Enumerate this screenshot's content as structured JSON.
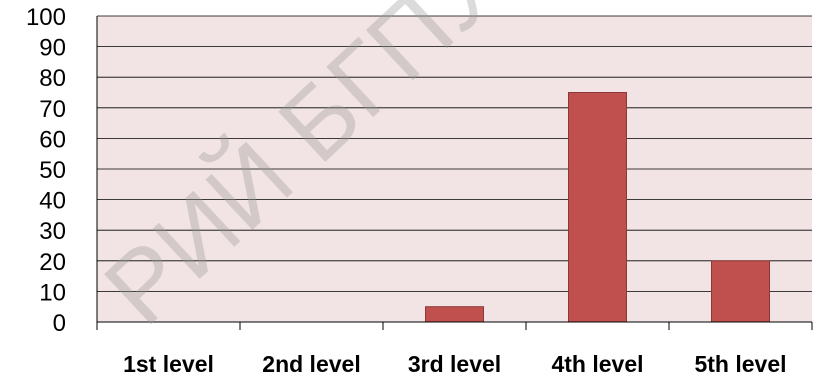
{
  "chart_data": {
    "type": "bar",
    "categories": [
      "1st level",
      "2nd level",
      "3rd level",
      "4th level",
      "5th level"
    ],
    "values": [
      0,
      0,
      5,
      75,
      20
    ],
    "ylim": [
      0,
      100
    ],
    "yticks": [
      0,
      10,
      20,
      30,
      40,
      50,
      60,
      70,
      80,
      90,
      100
    ],
    "grid": true,
    "legend": "none",
    "colors": {
      "bar": "#c0504d",
      "bar_border": "#8c3836",
      "plot_background": "#f2e4e4",
      "gridline": "#000000"
    }
  },
  "watermark": {
    "text": "РИЙ БГПУ",
    "kind": "watermark"
  }
}
